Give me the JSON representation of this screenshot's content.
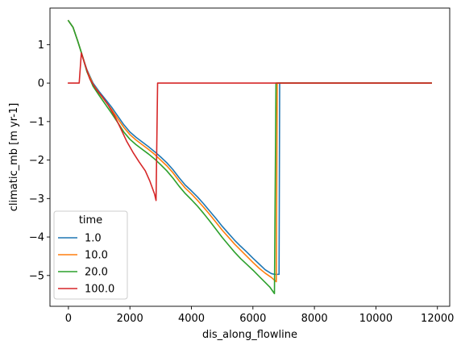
{
  "chart_data": {
    "type": "line",
    "xlabel": "dis_along_flowline",
    "ylabel": "climatic_mb [m yr-1]",
    "xlim": [
      -600,
      12400
    ],
    "ylim": [
      -5.8,
      1.95
    ],
    "xticks": [
      0,
      2000,
      4000,
      6000,
      8000,
      10000,
      12000
    ],
    "xtick_labels": [
      "0",
      "2000",
      "4000",
      "6000",
      "8000",
      "10000",
      "12000"
    ],
    "yticks": [
      1,
      0,
      -1,
      -2,
      -3,
      -4,
      -5
    ],
    "ytick_labels": [
      "1",
      "0",
      "−1",
      "−2",
      "−3",
      "−4",
      "−5"
    ],
    "grid": false,
    "legend": {
      "title": "time",
      "placement": "lower-left"
    },
    "series": [
      {
        "name": "1.0",
        "color": "#1f77b4",
        "points": [
          [
            0,
            1.62
          ],
          [
            150,
            1.45
          ],
          [
            300,
            1.1
          ],
          [
            450,
            0.72
          ],
          [
            600,
            0.35
          ],
          [
            800,
            0.0
          ],
          [
            1000,
            -0.22
          ],
          [
            1200,
            -0.42
          ],
          [
            1400,
            -0.62
          ],
          [
            1600,
            -0.85
          ],
          [
            1800,
            -1.08
          ],
          [
            2000,
            -1.27
          ],
          [
            2200,
            -1.41
          ],
          [
            2400,
            -1.53
          ],
          [
            2600,
            -1.65
          ],
          [
            2800,
            -1.78
          ],
          [
            3000,
            -1.92
          ],
          [
            3200,
            -2.07
          ],
          [
            3400,
            -2.25
          ],
          [
            3600,
            -2.46
          ],
          [
            3800,
            -2.65
          ],
          [
            4000,
            -2.8
          ],
          [
            4200,
            -2.96
          ],
          [
            4400,
            -3.14
          ],
          [
            4600,
            -3.33
          ],
          [
            4800,
            -3.52
          ],
          [
            5000,
            -3.72
          ],
          [
            5200,
            -3.9
          ],
          [
            5400,
            -4.08
          ],
          [
            5600,
            -4.24
          ],
          [
            5800,
            -4.39
          ],
          [
            6000,
            -4.55
          ],
          [
            6200,
            -4.7
          ],
          [
            6400,
            -4.85
          ],
          [
            6600,
            -4.95
          ],
          [
            6700,
            -4.97
          ],
          [
            6850,
            -4.97
          ],
          [
            6870,
            0.0
          ],
          [
            7000,
            0.0
          ],
          [
            8000,
            0.0
          ],
          [
            9000,
            0.0
          ],
          [
            10000,
            0.0
          ],
          [
            11000,
            0.0
          ],
          [
            11800,
            0.0
          ]
        ]
      },
      {
        "name": "10.0",
        "color": "#ff7f0e",
        "points": [
          [
            0,
            1.62
          ],
          [
            150,
            1.45
          ],
          [
            300,
            1.1
          ],
          [
            450,
            0.72
          ],
          [
            600,
            0.33
          ],
          [
            800,
            -0.03
          ],
          [
            1000,
            -0.26
          ],
          [
            1200,
            -0.47
          ],
          [
            1400,
            -0.68
          ],
          [
            1600,
            -0.92
          ],
          [
            1800,
            -1.15
          ],
          [
            2000,
            -1.34
          ],
          [
            2200,
            -1.48
          ],
          [
            2400,
            -1.6
          ],
          [
            2600,
            -1.72
          ],
          [
            2800,
            -1.85
          ],
          [
            3000,
            -2.0
          ],
          [
            3200,
            -2.15
          ],
          [
            3400,
            -2.33
          ],
          [
            3600,
            -2.54
          ],
          [
            3800,
            -2.73
          ],
          [
            4000,
            -2.88
          ],
          [
            4200,
            -3.05
          ],
          [
            4400,
            -3.23
          ],
          [
            4600,
            -3.42
          ],
          [
            4800,
            -3.62
          ],
          [
            5000,
            -3.82
          ],
          [
            5200,
            -4.0
          ],
          [
            5400,
            -4.18
          ],
          [
            5600,
            -4.34
          ],
          [
            5800,
            -4.5
          ],
          [
            6000,
            -4.66
          ],
          [
            6200,
            -4.81
          ],
          [
            6400,
            -4.94
          ],
          [
            6600,
            -5.05
          ],
          [
            6700,
            -5.12
          ],
          [
            6760,
            -5.16
          ],
          [
            6790,
            0.0
          ],
          [
            7000,
            0.0
          ],
          [
            8000,
            0.0
          ],
          [
            9000,
            0.0
          ],
          [
            10000,
            0.0
          ],
          [
            11000,
            0.0
          ],
          [
            11800,
            0.0
          ]
        ]
      },
      {
        "name": "20.0",
        "color": "#2ca02c",
        "points": [
          [
            0,
            1.62
          ],
          [
            150,
            1.45
          ],
          [
            300,
            1.1
          ],
          [
            450,
            0.72
          ],
          [
            600,
            0.3
          ],
          [
            800,
            -0.08
          ],
          [
            1000,
            -0.32
          ],
          [
            1200,
            -0.55
          ],
          [
            1400,
            -0.78
          ],
          [
            1600,
            -1.02
          ],
          [
            1800,
            -1.27
          ],
          [
            2000,
            -1.46
          ],
          [
            2200,
            -1.6
          ],
          [
            2400,
            -1.72
          ],
          [
            2600,
            -1.84
          ],
          [
            2800,
            -1.97
          ],
          [
            3000,
            -2.12
          ],
          [
            3200,
            -2.28
          ],
          [
            3400,
            -2.47
          ],
          [
            3600,
            -2.68
          ],
          [
            3800,
            -2.87
          ],
          [
            4000,
            -3.03
          ],
          [
            4200,
            -3.2
          ],
          [
            4400,
            -3.39
          ],
          [
            4600,
            -3.59
          ],
          [
            4800,
            -3.8
          ],
          [
            5000,
            -4.01
          ],
          [
            5200,
            -4.2
          ],
          [
            5400,
            -4.39
          ],
          [
            5600,
            -4.56
          ],
          [
            5800,
            -4.71
          ],
          [
            6000,
            -4.86
          ],
          [
            6200,
            -5.02
          ],
          [
            6400,
            -5.18
          ],
          [
            6550,
            -5.3
          ],
          [
            6700,
            -5.47
          ],
          [
            6750,
            0.0
          ],
          [
            7000,
            0.0
          ],
          [
            8000,
            0.0
          ],
          [
            9000,
            0.0
          ],
          [
            10000,
            0.0
          ],
          [
            11000,
            0.0
          ],
          [
            11800,
            0.0
          ]
        ]
      },
      {
        "name": "100.0",
        "color": "#d62728",
        "points": [
          [
            0,
            0.0
          ],
          [
            350,
            0.0
          ],
          [
            420,
            0.78
          ],
          [
            550,
            0.45
          ],
          [
            700,
            0.1
          ],
          [
            900,
            -0.16
          ],
          [
            1100,
            -0.35
          ],
          [
            1300,
            -0.58
          ],
          [
            1500,
            -0.85
          ],
          [
            1700,
            -1.18
          ],
          [
            1900,
            -1.52
          ],
          [
            2100,
            -1.8
          ],
          [
            2300,
            -2.05
          ],
          [
            2500,
            -2.28
          ],
          [
            2650,
            -2.55
          ],
          [
            2800,
            -2.88
          ],
          [
            2850,
            -3.05
          ],
          [
            2900,
            0.0
          ],
          [
            3000,
            0.0
          ],
          [
            4000,
            0.0
          ],
          [
            5000,
            0.0
          ],
          [
            6000,
            0.0
          ],
          [
            7000,
            0.0
          ],
          [
            8000,
            0.0
          ],
          [
            9000,
            0.0
          ],
          [
            10000,
            0.0
          ],
          [
            11000,
            0.0
          ],
          [
            11800,
            0.0
          ]
        ]
      }
    ]
  }
}
